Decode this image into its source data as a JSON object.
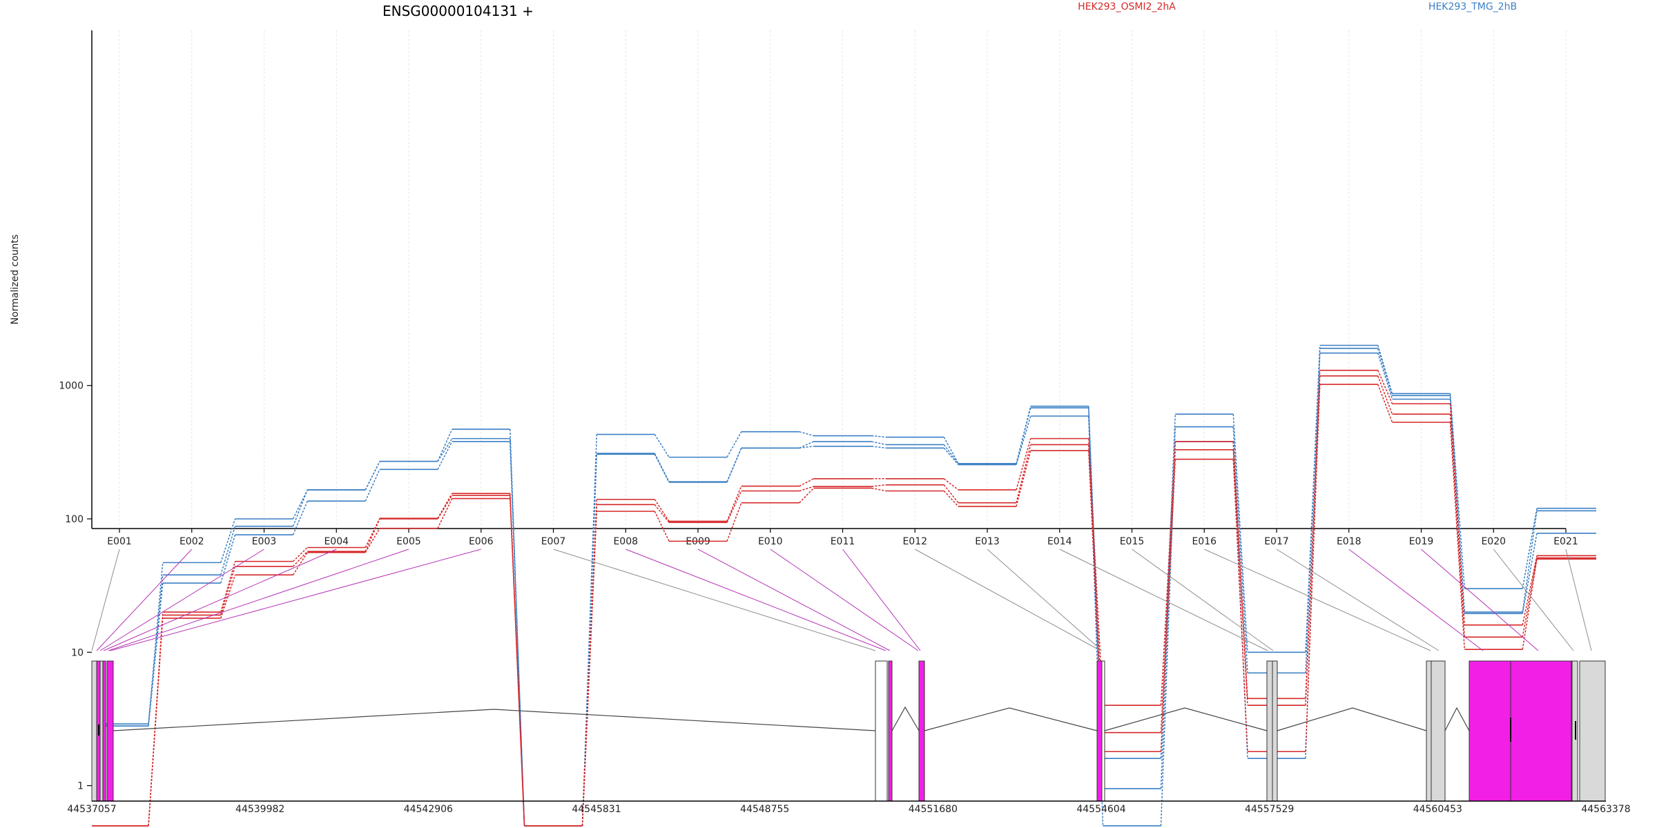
{
  "chart_data": {
    "type": "line",
    "title": "ENSG00000104131 +",
    "ylabel": "Normalized counts",
    "yscale": "log",
    "yticks": [
      1,
      10,
      100,
      1000
    ],
    "categories": [
      "E001",
      "E002",
      "E003",
      "E004",
      "E005",
      "E006",
      "E007",
      "E008",
      "E009",
      "E010",
      "E011",
      "E012",
      "E013",
      "E014",
      "E015",
      "E016",
      "E017",
      "E018",
      "E019",
      "E020",
      "E021"
    ],
    "legend": [
      {
        "name": "HEK293_OSMI2_2hA",
        "color": "#d62728"
      },
      {
        "name": "HEK293_TMG_2hB",
        "color": "#3a7fc4"
      }
    ],
    "series": [
      {
        "group": "HEK293_TMG_2hB",
        "color": "#3a7fc4",
        "values": [
          2.9,
          47,
          100,
          165,
          270,
          470,
          0.5,
          430,
          290,
          450,
          420,
          410,
          260,
          700,
          1.6,
          610,
          10,
          2000,
          870,
          30,
          120
        ]
      },
      {
        "group": "HEK293_TMG_2hB",
        "color": "#3a7fc4",
        "values": [
          2.8,
          38,
          88,
          165,
          270,
          400,
          0.5,
          310,
          190,
          340,
          380,
          360,
          260,
          680,
          0.95,
          490,
          7,
          1900,
          840,
          20,
          115
        ]
      },
      {
        "group": "HEK293_TMG_2hB",
        "color": "#3a7fc4",
        "values": [
          2.8,
          33,
          76,
          136,
          235,
          380,
          0.5,
          305,
          188,
          340,
          350,
          340,
          255,
          590,
          0.5,
          380,
          1.6,
          1750,
          790,
          19.5,
          78
        ]
      },
      {
        "group": "HEK293_OSMI2_2hA",
        "color": "#d62728",
        "values": [
          0.5,
          20,
          48,
          61,
          101,
          155,
          0.5,
          140,
          96,
          176,
          200,
          200,
          165,
          400,
          4,
          380,
          4.5,
          1300,
          730,
          16,
          53
        ]
      },
      {
        "group": "HEK293_OSMI2_2hA",
        "color": "#d62728",
        "values": [
          0.5,
          19,
          44,
          57,
          100,
          150,
          0.5,
          128,
          94,
          162,
          175,
          180,
          132,
          360,
          2.5,
          330,
          4,
          1180,
          610,
          13,
          51
        ]
      },
      {
        "group": "HEK293_OSMI2_2hA",
        "color": "#d62728",
        "values": [
          0.5,
          18,
          38,
          56,
          85,
          142,
          0.5,
          114,
          68,
          132,
          170,
          162,
          124,
          325,
          1.8,
          280,
          1.8,
          1020,
          530,
          10.5,
          50
        ]
      }
    ],
    "transcript": {
      "coord_ticks": [
        "44537057",
        "44539982",
        "44542906",
        "44545831",
        "44548755",
        "44551680",
        "44554604",
        "44557529",
        "44560453",
        "44563378"
      ],
      "highlighted_exons": [
        "E002",
        "E003",
        "E004",
        "E005",
        "E006",
        "E008",
        "E009",
        "E010",
        "E011",
        "E018",
        "E019"
      ]
    }
  }
}
